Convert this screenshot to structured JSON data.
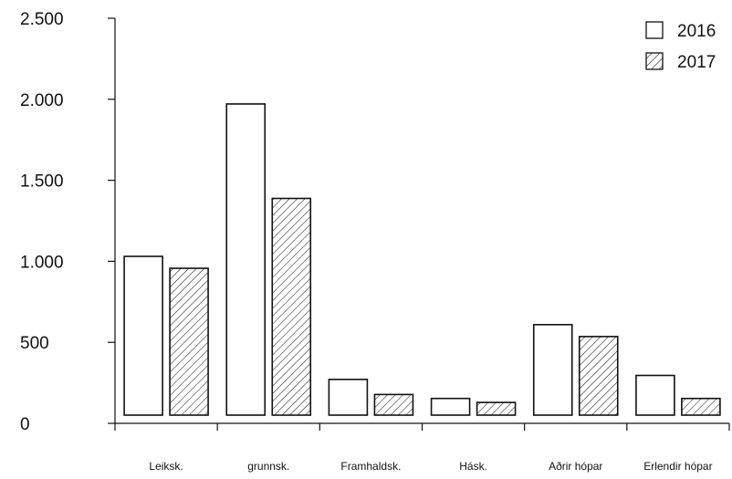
{
  "chart_data": {
    "type": "bar",
    "categories": [
      "Leiksk.",
      "grunnsk.",
      "Framhaldsk.",
      "Hásk.",
      "Aðrir hópar",
      "Erlendir hópar"
    ],
    "series": [
      {
        "name": "2016",
        "values": [
          1000,
          1960,
          225,
          105,
          570,
          250
        ],
        "pattern": "none"
      },
      {
        "name": "2017",
        "values": [
          925,
          1365,
          130,
          80,
          495,
          105
        ],
        "pattern": "diagonal-hatch"
      }
    ],
    "yticks": [
      0,
      500,
      1000,
      1500,
      2000,
      2500
    ],
    "ytick_labels": [
      "0",
      "500",
      "1.000",
      "1.500",
      "2.000",
      "2.500"
    ],
    "ylim": [
      0,
      2500
    ],
    "title": "",
    "xlabel": "",
    "ylabel": "",
    "grid": false,
    "legend_position": "top-right",
    "colors": {
      "outline": "#111111",
      "fill": "#ffffff",
      "hatch": "#111111"
    }
  }
}
